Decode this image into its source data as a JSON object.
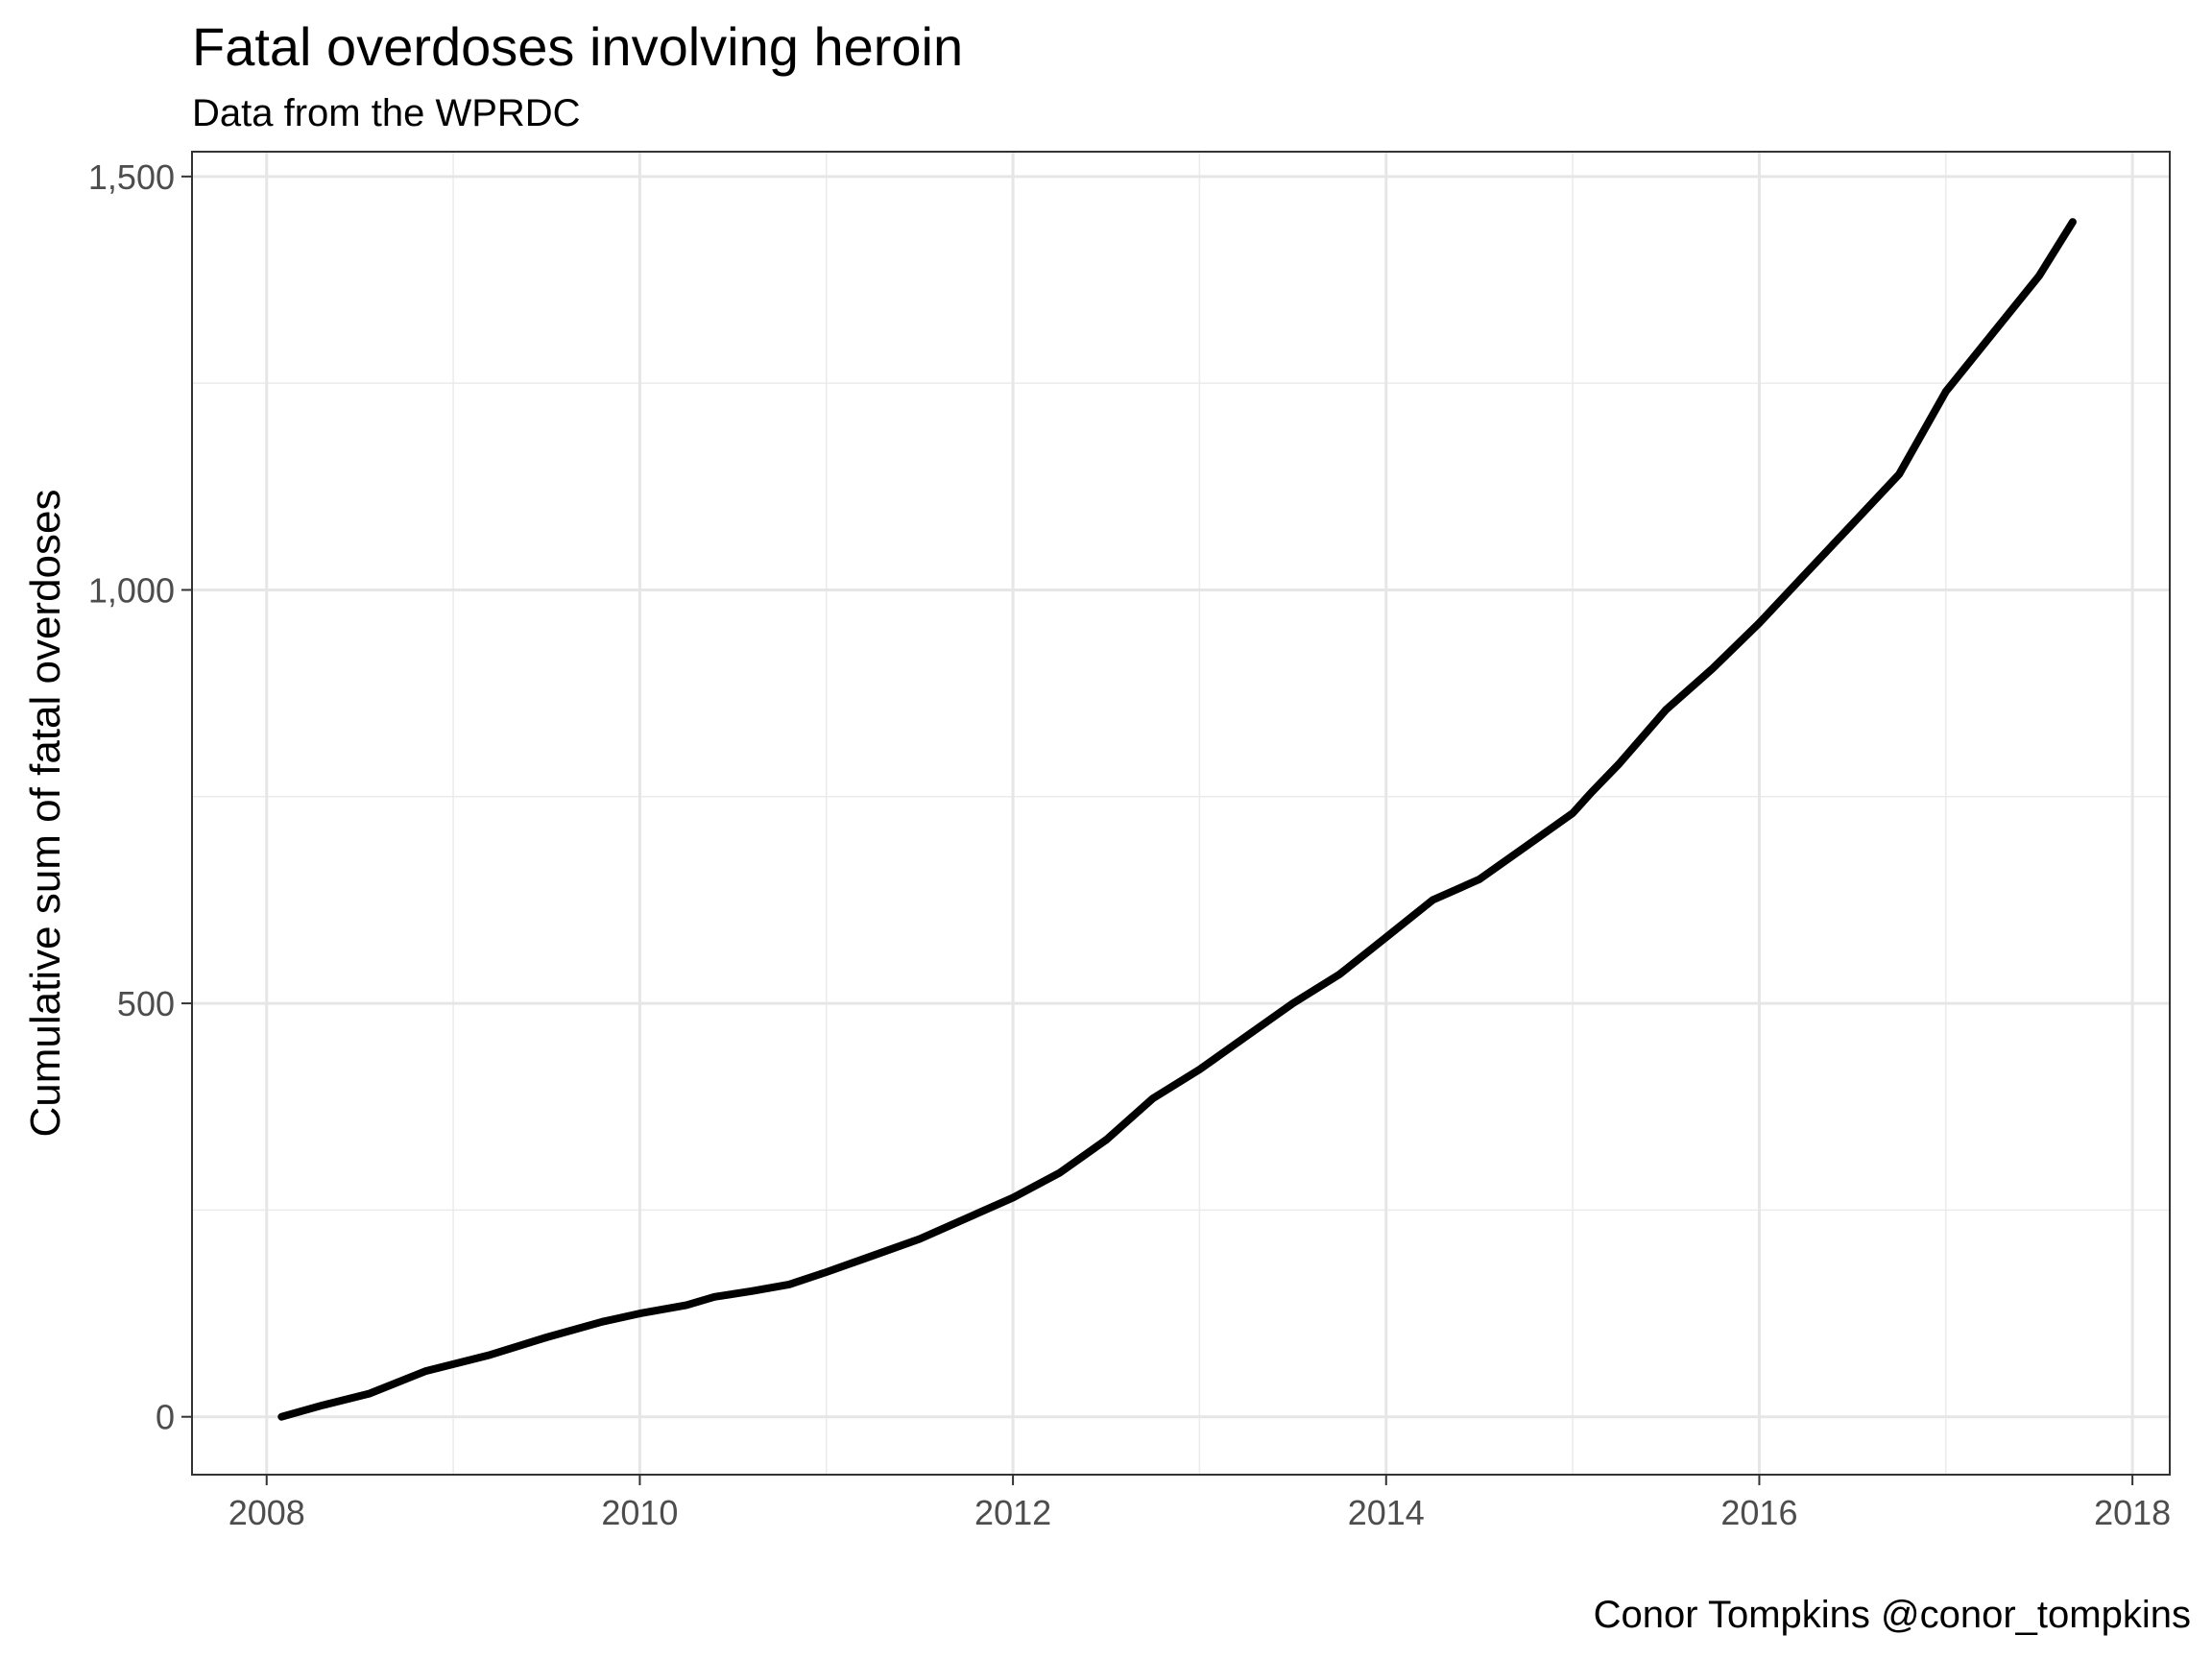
{
  "chart_data": {
    "type": "line",
    "title": "Fatal overdoses involving heroin",
    "subtitle": "Data from the WPRDC",
    "caption": "Conor Tompkins @conor_tompkins",
    "xlabel": "",
    "ylabel": "Cumulative sum of fatal overdoses",
    "xlim": [
      2007.6,
      2018.2
    ],
    "ylim": [
      -70,
      1530
    ],
    "x_ticks": [
      2008,
      2010,
      2012,
      2014,
      2016,
      2018
    ],
    "x_tick_labels": [
      "2008",
      "2010",
      "2012",
      "2014",
      "2016",
      "2018"
    ],
    "y_ticks": [
      0,
      500,
      1000,
      1500
    ],
    "y_tick_labels": [
      "0",
      "500",
      "1,000",
      "1,500"
    ],
    "y_minor_ticks": [
      250,
      750,
      1250
    ],
    "x_minor_ticks": [
      2009,
      2011,
      2013,
      2015,
      2017
    ],
    "grid": true,
    "line_color": "#000000",
    "series": [
      {
        "x": [
          2008.08,
          2008.3,
          2008.55,
          2008.85,
          2009.2,
          2009.5,
          2009.8,
          2010.0,
          2010.25,
          2010.4,
          2010.6,
          2010.8,
          2011.0,
          2011.25,
          2011.5,
          2011.75,
          2012.0,
          2012.25,
          2012.5,
          2012.75,
          2013.0,
          2013.25,
          2013.5,
          2013.75,
          2014.0,
          2014.25,
          2014.5,
          2014.75,
          2015.0,
          2015.1,
          2015.25,
          2015.5,
          2015.75,
          2016.0,
          2016.25,
          2016.5,
          2016.75,
          2017.0,
          2017.25,
          2017.5,
          2017.68
        ],
        "y": [
          0,
          14,
          28,
          55,
          75,
          96,
          115,
          125,
          135,
          145,
          152,
          160,
          175,
          195,
          215,
          240,
          265,
          295,
          335,
          385,
          420,
          460,
          500,
          535,
          580,
          625,
          650,
          690,
          730,
          755,
          790,
          855,
          905,
          960,
          1020,
          1080,
          1140,
          1240,
          1310,
          1380,
          1445
        ]
      }
    ]
  }
}
